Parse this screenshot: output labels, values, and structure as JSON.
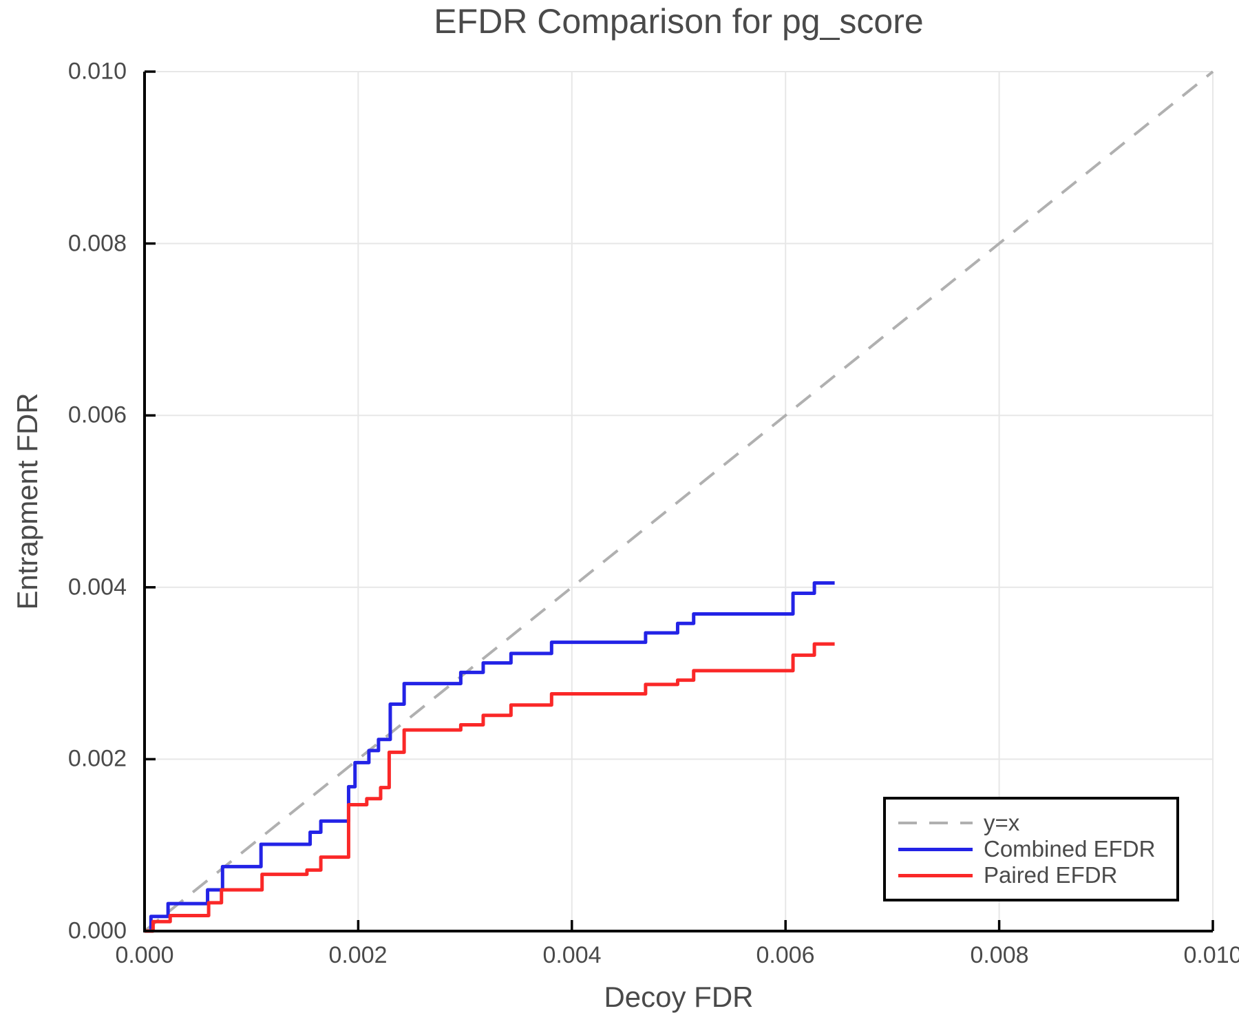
{
  "title": "EFDR Comparison for pg_score",
  "x_axis": {
    "label": "Decoy FDR",
    "tick_labels": [
      "0.000",
      "0.002",
      "0.004",
      "0.006",
      "0.008",
      "0.010"
    ]
  },
  "y_axis": {
    "label": "Entrapment FDR",
    "tick_labels": [
      "0.000",
      "0.002",
      "0.004",
      "0.006",
      "0.008",
      "0.010"
    ]
  },
  "legend": {
    "entries": [
      {
        "label": "y=x",
        "color": "#b0b0b0",
        "dashed": true
      },
      {
        "label": "Combined EFDR",
        "color": "#2323e6",
        "dashed": false
      },
      {
        "label": "Paired EFDR",
        "color": "#fa2828",
        "dashed": false
      }
    ]
  },
  "chart_data": {
    "type": "line",
    "title": "EFDR Comparison for pg_score",
    "xlabel": "Decoy FDR",
    "ylabel": "Entrapment FDR",
    "xlim": [
      0,
      0.01
    ],
    "ylim": [
      0,
      0.01
    ],
    "xticks": [
      0,
      0.002,
      0.004,
      0.006,
      0.008,
      0.01
    ],
    "yticks": [
      0,
      0.002,
      0.004,
      0.006,
      0.008,
      0.01
    ],
    "grid": true,
    "legend_position": "lower right",
    "reference": {
      "name": "y=x",
      "color": "#b0b0b0",
      "from": [
        0,
        0
      ],
      "to": [
        0.01,
        0.01
      ]
    },
    "series": [
      {
        "name": "Combined EFDR",
        "color": "#2323e6",
        "style": "step",
        "x_end": 0.00646,
        "points": [
          [
            6e-05,
            0.00017
          ],
          [
            0.00022,
            0.00032
          ],
          [
            0.00059,
            0.00048
          ],
          [
            0.00073,
            0.00075
          ],
          [
            0.00109,
            0.00101
          ],
          [
            0.00155,
            0.00115
          ],
          [
            0.00165,
            0.00128
          ],
          [
            0.00191,
            0.00168
          ],
          [
            0.00197,
            0.00196
          ],
          [
            0.0021,
            0.0021
          ],
          [
            0.00219,
            0.00223
          ],
          [
            0.0023,
            0.00264
          ],
          [
            0.00243,
            0.00288
          ],
          [
            0.00296,
            0.00301
          ],
          [
            0.00317,
            0.00312
          ],
          [
            0.00343,
            0.00323
          ],
          [
            0.00381,
            0.00336
          ],
          [
            0.00469,
            0.00347
          ],
          [
            0.00499,
            0.00358
          ],
          [
            0.00514,
            0.00369
          ],
          [
            0.00607,
            0.00393
          ],
          [
            0.00627,
            0.00405
          ]
        ]
      },
      {
        "name": "Paired EFDR",
        "color": "#fa2828",
        "style": "step",
        "x_end": 0.00646,
        "points": [
          [
            8e-05,
            0.00011
          ],
          [
            0.00024,
            0.00018
          ],
          [
            0.0006,
            0.00033
          ],
          [
            0.00072,
            0.00048
          ],
          [
            0.0011,
            0.00066
          ],
          [
            0.00152,
            0.00071
          ],
          [
            0.00165,
            0.00086
          ],
          [
            0.00191,
            0.00147
          ],
          [
            0.00208,
            0.00154
          ],
          [
            0.00221,
            0.00167
          ],
          [
            0.00229,
            0.00208
          ],
          [
            0.00243,
            0.00234
          ],
          [
            0.00296,
            0.0024
          ],
          [
            0.00317,
            0.00251
          ],
          [
            0.00343,
            0.00263
          ],
          [
            0.00381,
            0.00276
          ],
          [
            0.00469,
            0.00287
          ],
          [
            0.00499,
            0.00292
          ],
          [
            0.00514,
            0.00303
          ],
          [
            0.00607,
            0.00321
          ],
          [
            0.00627,
            0.00334
          ]
        ]
      }
    ]
  }
}
